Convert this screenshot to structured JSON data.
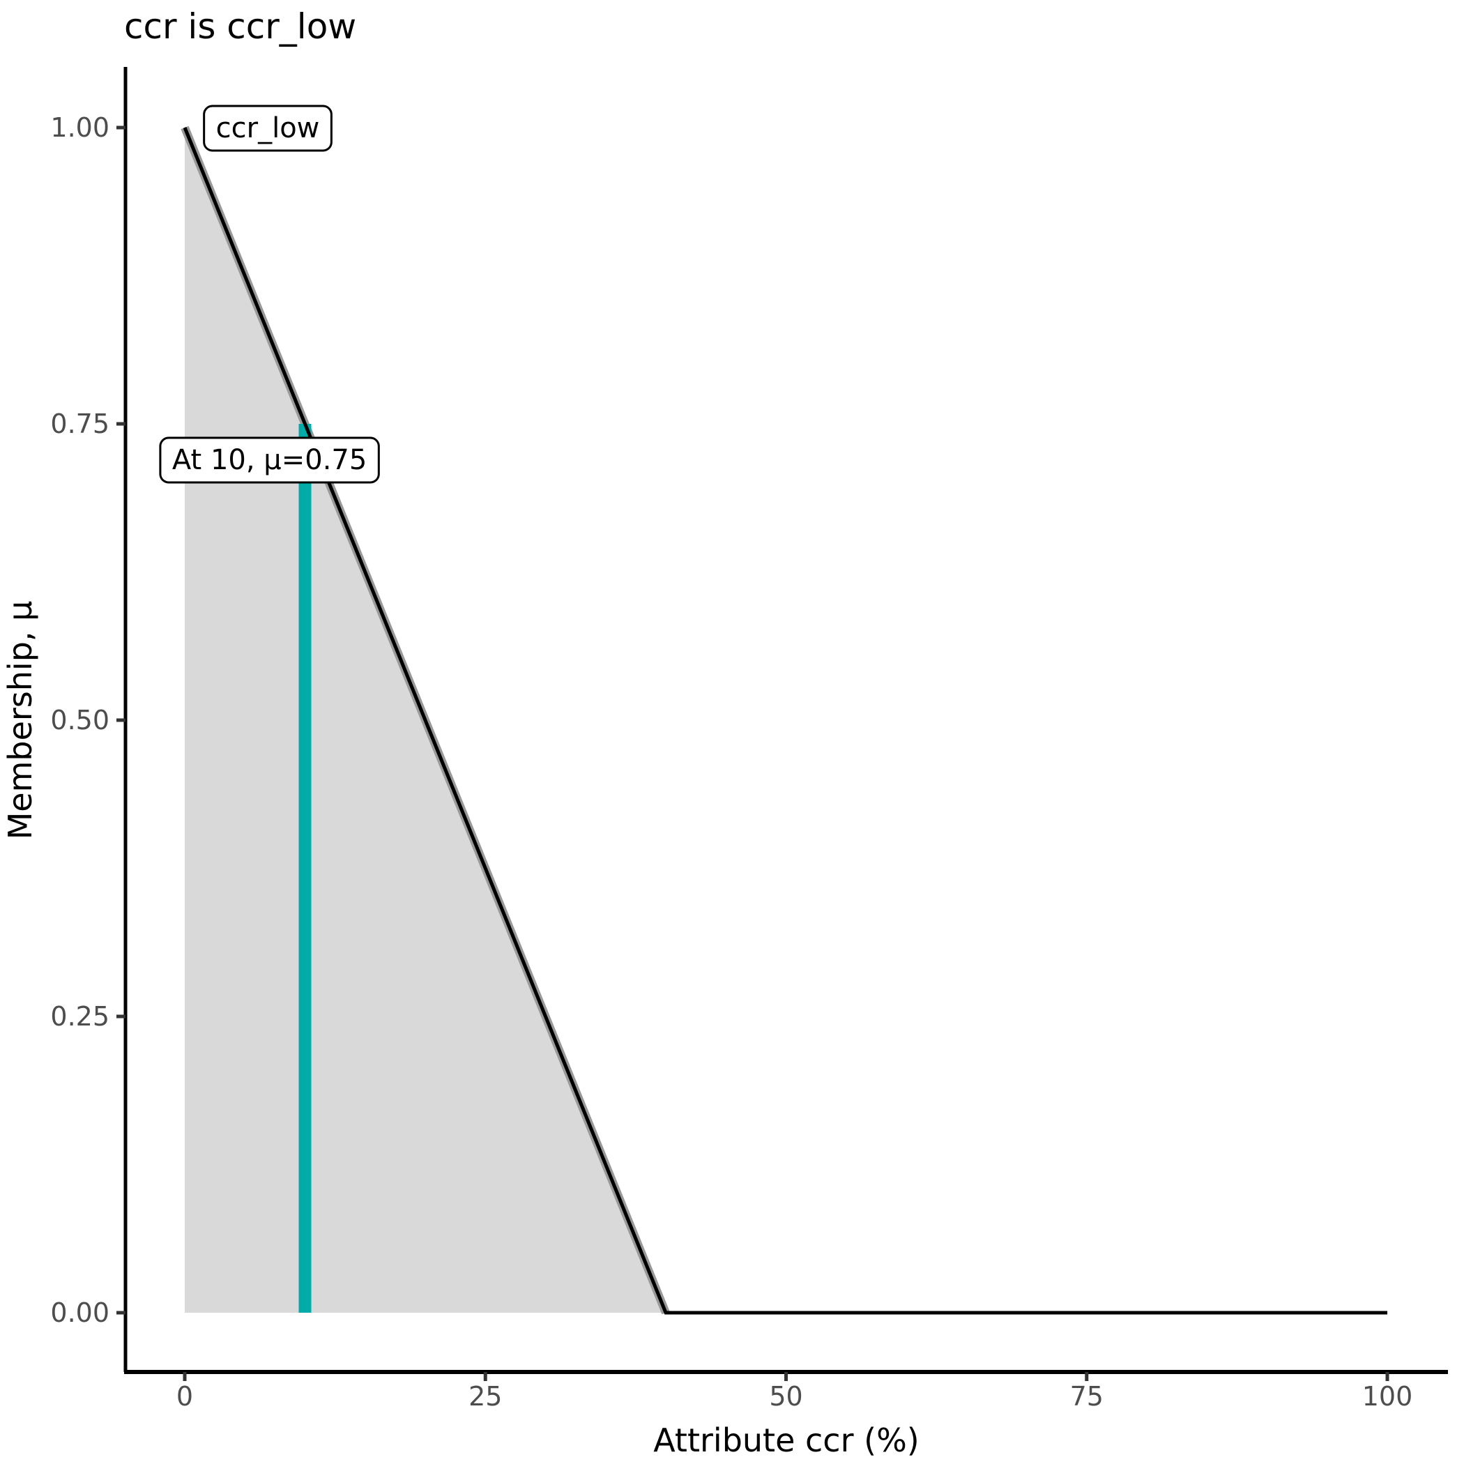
{
  "chart_data": {
    "type": "area",
    "title": "ccr is ccr_low",
    "xlabel": "Attribute ccr (%)",
    "ylabel": "Membership, μ",
    "xlim": [
      0,
      100
    ],
    "ylim": [
      0,
      1
    ],
    "x_ticks": {
      "values": [
        0,
        25,
        50,
        75,
        100
      ],
      "labels": [
        "0",
        "25",
        "50",
        "75",
        "100"
      ]
    },
    "y_ticks": {
      "values": [
        0,
        0.25,
        0.5,
        0.75,
        1.0
      ],
      "labels": [
        "0.00",
        "0.25",
        "0.50",
        "0.75",
        "1.00"
      ]
    },
    "grid": "off",
    "legend": "none",
    "membership_function": {
      "name": "ccr_low",
      "points": [
        [
          0,
          1
        ],
        [
          40,
          0
        ],
        [
          100,
          0
        ]
      ]
    },
    "highlight_segment": {
      "name": "ccr_low",
      "points": [
        [
          0,
          1
        ],
        [
          40,
          0
        ]
      ]
    },
    "evaluation": {
      "x": 10,
      "mu": 0.75,
      "label": "At 10, μ=0.75"
    },
    "annotations": [
      {
        "text": "ccr_low",
        "x": 6.9,
        "y": 1.0
      },
      {
        "text": "At 10, μ=0.75",
        "x": 7.05,
        "y": 0.72
      }
    ],
    "colors": {
      "area_fill": "#d9d9d9",
      "function_line": "#000000",
      "highlight_line": "#999999",
      "evaluation_line": "#00aba8",
      "axis_line": "#000000",
      "tick_mark": "#333333",
      "tick_label": "#4d4d4d",
      "annotation_bg": "#ffffff",
      "annotation_border": "#000000"
    }
  }
}
